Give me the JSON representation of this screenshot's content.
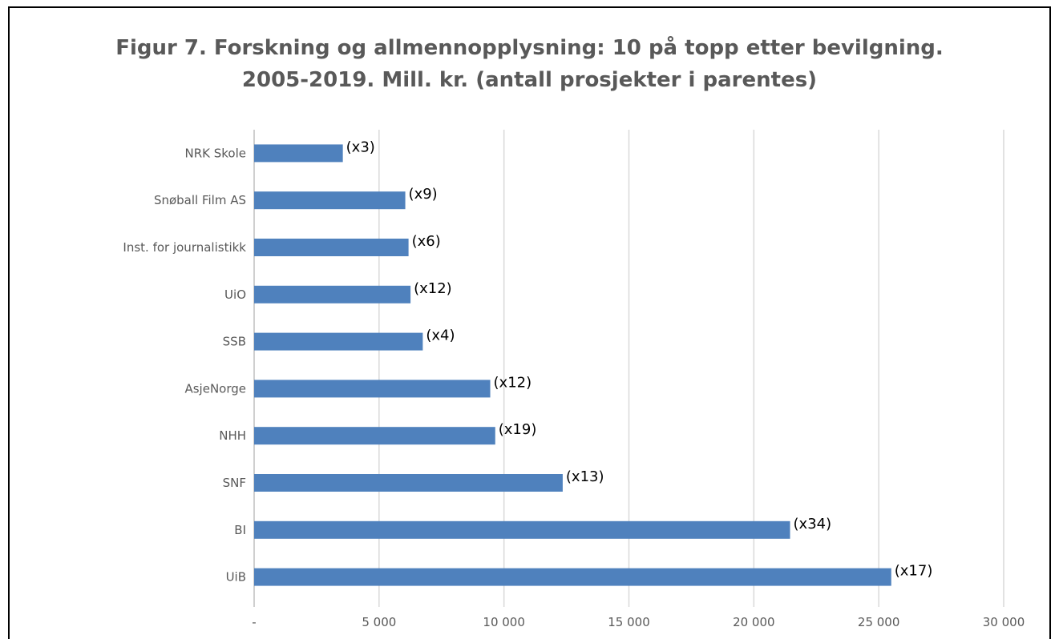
{
  "chart_data": {
    "type": "bar",
    "orientation": "horizontal",
    "title": "Figur 7. Forskning og allmennopplysning: 10 på topp etter bevilgning.",
    "subtitle": "2005-2019. Mill. kr. (antall prosjekter i parentes)",
    "categories": [
      "NRK Skole",
      "Snøball Film AS",
      "Inst. for journalistikk",
      "UiO",
      "SSB",
      "AsjeNorge",
      "NHH",
      "SNF",
      "BI",
      "UiB"
    ],
    "values": [
      3550,
      6050,
      6180,
      6260,
      6750,
      9450,
      9650,
      12350,
      21450,
      25500
    ],
    "data_labels": [
      "(x3)",
      "(x9)",
      "(x6)",
      "(x12)",
      "(x4)",
      "(x12)",
      "(x19)",
      "(x13)",
      "(x34)",
      "(x17)"
    ],
    "xlim": [
      0,
      30000
    ],
    "x_ticks": [
      0,
      5000,
      10000,
      15000,
      20000,
      25000,
      30000
    ],
    "x_tick_labels": [
      "-",
      "5 000",
      "10 000",
      "15 000",
      "20 000",
      "25 000",
      "30 000"
    ],
    "grid": true,
    "legend": "none",
    "bar_color": "#4f81bd",
    "grid_color": "#d9d9d9",
    "text_color": "#595959"
  }
}
